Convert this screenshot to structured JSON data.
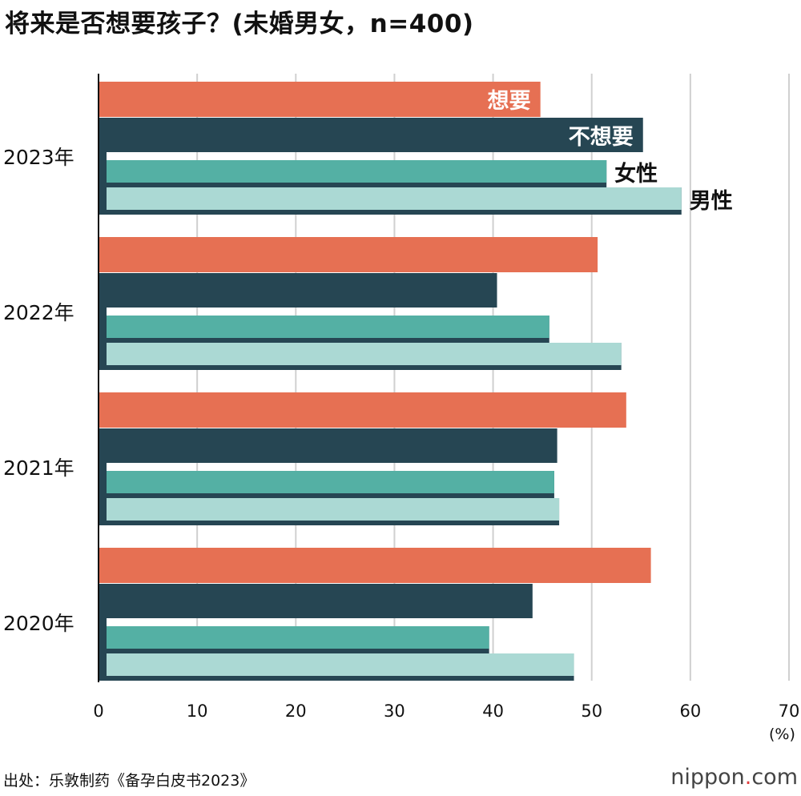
{
  "title": "将来是否想要孩子？(未婚男女，n=400)",
  "source": "出处：乐敦制药《备孕白皮书2023》",
  "logo": {
    "name": "nippon",
    "dot": ".",
    "tld": "com"
  },
  "colors": {
    "want": "#e67053",
    "not_want": "#264653",
    "female": "#54b0a4",
    "male": "#abd9d4",
    "grid": "#d0d0d0"
  },
  "chart_data": {
    "type": "bar",
    "orientation": "horizontal",
    "title": "将来是否想要孩子？(未婚男女，n=400)",
    "unit": "(%)",
    "categories": [
      "2023年",
      "2022年",
      "2021年",
      "2020年"
    ],
    "xlim": [
      0,
      70
    ],
    "xticks": [
      0,
      10,
      20,
      30,
      40,
      50,
      60,
      70
    ],
    "grid": true,
    "series": [
      {
        "name": "想要",
        "values": [
          44.8,
          50.6,
          53.5,
          56.0
        ]
      },
      {
        "name": "不想要",
        "values": [
          55.2,
          40.4,
          46.5,
          44.0
        ]
      },
      {
        "name": "女性",
        "values": [
          51.5,
          45.7,
          46.2,
          39.6
        ]
      },
      {
        "name": "男性",
        "values": [
          59.1,
          53.0,
          46.7,
          48.2
        ]
      }
    ],
    "legend": "inline labels on 2023 bars"
  }
}
